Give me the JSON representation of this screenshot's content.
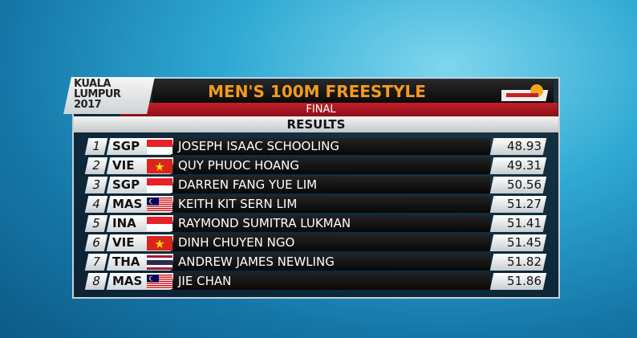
{
  "header": {
    "logo": "KUALA LUMPUR 2017",
    "title": "MEN'S 100M FREESTYLE",
    "subtitle": "FINAL",
    "section": "RESULTS"
  },
  "table": {
    "rows": [
      [
        1,
        "SGP",
        "JOSEPH ISAAC SCHOOLING",
        48.93
      ],
      [
        2,
        "VIE",
        "QUY PHUOC HOANG",
        49.31
      ],
      [
        3,
        "SGP",
        "DARREN FANG YUE LIM",
        50.56
      ],
      [
        4,
        "MAS",
        "KEITH KIT SERN LIM",
        51.27
      ],
      [
        5,
        "INA",
        "RAYMOND SUMITRA LUKMAN",
        51.41
      ],
      [
        6,
        "VIE",
        "DINH CHUYEN NGO",
        51.45
      ],
      [
        7,
        "THA",
        "ANDREW JAMES NEWLING",
        51.82
      ],
      [
        8,
        "MAS",
        "JIE CHAN",
        51.86
      ]
    ]
  }
}
